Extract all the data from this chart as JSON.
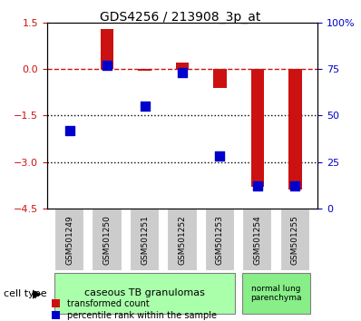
{
  "title": "GDS4256 / 213908_3p_at",
  "samples": [
    "GSM501249",
    "GSM501250",
    "GSM501251",
    "GSM501252",
    "GSM501253",
    "GSM501254",
    "GSM501255"
  ],
  "transformed_count": [
    0.0,
    1.3,
    -0.05,
    0.2,
    -0.6,
    -3.8,
    -3.9
  ],
  "percentile_rank": [
    42,
    77,
    55,
    73,
    28,
    12,
    12
  ],
  "ylim_left": [
    -4.5,
    1.5
  ],
  "ylim_right": [
    0,
    100
  ],
  "left_ticks": [
    1.5,
    0,
    -1.5,
    -3,
    -4.5
  ],
  "right_ticks": [
    100,
    75,
    50,
    25,
    0
  ],
  "hlines": [
    -1.5,
    -3.0
  ],
  "cell_types": [
    {
      "label": "caseous TB granulomas",
      "samples": [
        0,
        1,
        2,
        3,
        4
      ],
      "color": "#aaffaa"
    },
    {
      "label": "normal lung\nparenchyma",
      "samples": [
        5,
        6
      ],
      "color": "#88ee88"
    }
  ],
  "bar_color": "#cc1111",
  "dot_color": "#0000cc",
  "dashed_color": "#cc1111",
  "legend_bar_label": "transformed count",
  "legend_dot_label": "percentile rank within the sample",
  "cell_type_label": "cell type",
  "background_plot": "#ffffff",
  "sample_box_color": "#cccccc"
}
